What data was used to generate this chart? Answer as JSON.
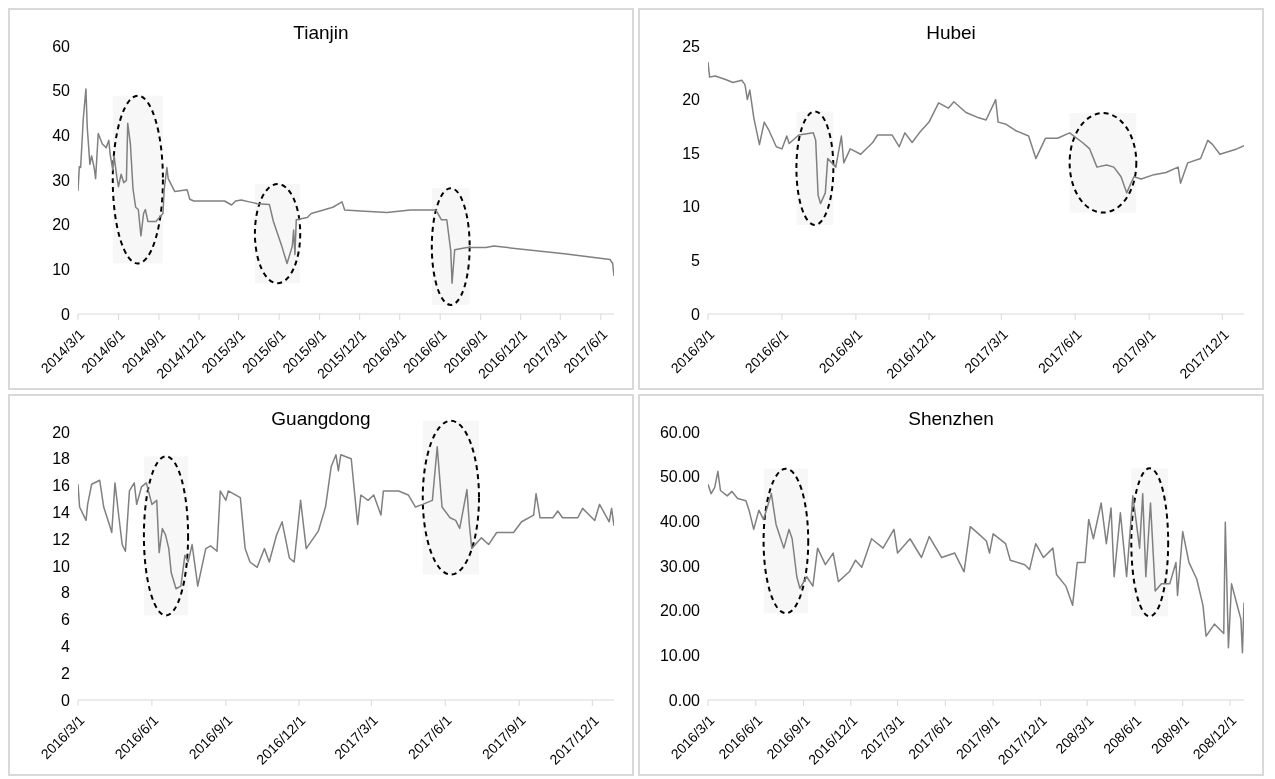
{
  "chart_data": [
    {
      "type": "line",
      "title": "Tianjin",
      "color": "#808080",
      "xlim": [
        "2014-03-01",
        "2017-07-01"
      ],
      "ylim": [
        0,
        60
      ],
      "yticks": [
        0,
        10,
        20,
        30,
        40,
        50,
        60
      ],
      "xticks": [
        {
          "value": "2014-03-01",
          "label": "2014/3/1"
        },
        {
          "value": "2014-06-01",
          "label": "2014/6/1"
        },
        {
          "value": "2014-09-01",
          "label": "2014/9/1"
        },
        {
          "value": "2014-12-01",
          "label": "2014/12/1"
        },
        {
          "value": "2015-03-01",
          "label": "2015/3/1"
        },
        {
          "value": "2015-06-01",
          "label": "2015/6/1"
        },
        {
          "value": "2015-09-01",
          "label": "2015/9/1"
        },
        {
          "value": "2015-12-01",
          "label": "2015/12/1"
        },
        {
          "value": "2016-03-01",
          "label": "2016/3/1"
        },
        {
          "value": "2016-06-01",
          "label": "2016/6/1"
        },
        {
          "value": "2016-09-01",
          "label": "2016/9/1"
        },
        {
          "value": "2016-12-01",
          "label": "2016/12/1"
        },
        {
          "value": "2017-03-01",
          "label": "2017/3/1"
        },
        {
          "value": "2017-06-01",
          "label": "2017/6/1"
        }
      ],
      "x": [
        "2014-03-01",
        "2014-03-04",
        "2014-03-07",
        "2014-03-13",
        "2014-03-19",
        "2014-03-22",
        "2014-03-28",
        "2014-04-01",
        "2014-04-07",
        "2014-04-10",
        "2014-04-16",
        "2014-04-25",
        "2014-05-04",
        "2014-05-10",
        "2014-05-13",
        "2014-05-19",
        "2014-05-22",
        "2014-05-28",
        "2014-06-01",
        "2014-06-07",
        "2014-06-13",
        "2014-06-19",
        "2014-06-22",
        "2014-06-28",
        "2014-07-04",
        "2014-07-10",
        "2014-07-16",
        "2014-07-22",
        "2014-07-28",
        "2014-08-01",
        "2014-08-07",
        "2014-08-25",
        "2014-09-10",
        "2014-09-13",
        "2014-09-19",
        "2014-09-22",
        "2014-10-07",
        "2014-11-04",
        "2014-11-10",
        "2014-11-19",
        "2015-01-28",
        "2015-02-13",
        "2015-02-22",
        "2015-03-07",
        "2015-03-25",
        "2015-04-13",
        "2015-05-10",
        "2015-05-19",
        "2015-06-07",
        "2015-06-19",
        "2015-07-01",
        "2015-07-04",
        "2015-07-07",
        "2015-07-10",
        "2015-08-04",
        "2015-08-13",
        "2015-09-10",
        "2015-10-01",
        "2015-10-22",
        "2015-10-28",
        "2015-12-13",
        "2016-02-01",
        "2016-03-25",
        "2016-05-22",
        "2016-06-04",
        "2016-06-16",
        "2016-06-25",
        "2016-06-28",
        "2016-07-04",
        "2016-08-01",
        "2016-09-13",
        "2016-10-01",
        "2017-03-10",
        "2017-06-22",
        "2017-06-28",
        "2017-07-01"
      ],
      "values": [
        27.6,
        33,
        32.8,
        43.7,
        50.4,
        41.8,
        33.5,
        35.4,
        32.6,
        30.3,
        40.4,
        38.1,
        37.2,
        38.9,
        35.8,
        32.2,
        35.4,
        30.8,
        28.5,
        31.3,
        29.4,
        29.9,
        42.7,
        38.1,
        28.0,
        23.9,
        23.4,
        17.5,
        22.5,
        23.4,
        20.7,
        20.7,
        22.5,
        28.0,
        32.8,
        30.3,
        27.4,
        27.8,
        25.7,
        25.3,
        25.3,
        24.4,
        25.3,
        25.5,
        25.1,
        24.7,
        24.5,
        20.7,
        15.2,
        11.3,
        15.2,
        18.8,
        13.3,
        21.1,
        21.6,
        22.5,
        23.3,
        23.9,
        25.1,
        23.3,
        23.0,
        22.7,
        23.3,
        23.3,
        21.1,
        21.1,
        14.2,
        6.9,
        14.4,
        14.9,
        14.9,
        15.2,
        13.5,
        12.2,
        11.3,
        8.5
      ],
      "bands": [
        {
          "axis": "x",
          "from": "2014-05-19",
          "to": "2014-09-10",
          "color": "#000000"
        },
        {
          "axis": "x",
          "from": "2015-04-07",
          "to": "2015-07-19",
          "color": "#000000"
        },
        {
          "axis": "x",
          "from": "2016-05-13",
          "to": "2016-08-07",
          "color": "#000000"
        }
      ]
    },
    {
      "type": "line",
      "title": "Hubei",
      "color": "#808080",
      "xlim": [
        "2016-03-01",
        "2017-12-28"
      ],
      "ylim": [
        0,
        25
      ],
      "yticks": [
        0,
        5,
        10,
        15,
        20,
        25
      ],
      "xticks": [
        {
          "value": "2016-03-01",
          "label": "2016/3/1"
        },
        {
          "value": "2016-06-01",
          "label": "2016/6/1"
        },
        {
          "value": "2016-09-01",
          "label": "2016/9/1"
        },
        {
          "value": "2016-12-01",
          "label": "2016/12/1"
        },
        {
          "value": "2017-03-01",
          "label": "2017/3/1"
        },
        {
          "value": "2017-06-01",
          "label": "2017/6/1"
        },
        {
          "value": "2017-09-01",
          "label": "2017/9/1"
        },
        {
          "value": "2017-12-01",
          "label": "2017/12/1"
        }
      ],
      "x": [
        "2016-03-01",
        "2016-03-03",
        "2016-03-10",
        "2016-03-22",
        "2016-04-01",
        "2016-04-12",
        "2016-04-16",
        "2016-04-19",
        "2016-04-22",
        "2016-04-27",
        "2016-05-04",
        "2016-05-10",
        "2016-05-16",
        "2016-05-25",
        "2016-06-01",
        "2016-06-07",
        "2016-06-10",
        "2016-06-22",
        "2016-07-10",
        "2016-07-13",
        "2016-07-16",
        "2016-07-19",
        "2016-07-25",
        "2016-07-28",
        "2016-08-07",
        "2016-08-14",
        "2016-08-17",
        "2016-08-25",
        "2016-09-07",
        "2016-09-22",
        "2016-09-28",
        "2016-10-16",
        "2016-10-25",
        "2016-11-01",
        "2016-11-10",
        "2016-11-19",
        "2016-12-01",
        "2016-12-13",
        "2016-12-25",
        "2017-01-01",
        "2017-01-16",
        "2017-02-01",
        "2017-02-10",
        "2017-02-22",
        "2017-02-25",
        "2017-03-07",
        "2017-03-19",
        "2017-04-04",
        "2017-04-13",
        "2017-04-25",
        "2017-05-10",
        "2017-05-25",
        "2017-06-10",
        "2017-06-19",
        "2017-06-28",
        "2017-07-10",
        "2017-07-19",
        "2017-07-28",
        "2017-08-04",
        "2017-08-13",
        "2017-08-22",
        "2017-09-07",
        "2017-09-22",
        "2017-10-07",
        "2017-10-10",
        "2017-10-19",
        "2017-11-04",
        "2017-11-13",
        "2017-11-19",
        "2017-11-28",
        "2017-12-19",
        "2017-12-28"
      ],
      "values": [
        23.5,
        22.1,
        22.2,
        21.9,
        21.6,
        21.8,
        21.4,
        20.0,
        20.9,
        18.3,
        15.8,
        17.9,
        17.1,
        15.6,
        15.4,
        16.6,
        15.9,
        16.7,
        16.9,
        16.2,
        11.1,
        10.3,
        11.3,
        14.5,
        13.7,
        16.6,
        14.1,
        15.4,
        14.9,
        16.0,
        16.7,
        16.7,
        15.6,
        16.9,
        16.0,
        16.9,
        17.9,
        19.7,
        19.2,
        19.8,
        18.8,
        18.3,
        18.1,
        20.0,
        17.9,
        17.7,
        17.1,
        16.6,
        14.5,
        16.4,
        16.4,
        16.9,
        16.0,
        15.4,
        13.7,
        13.9,
        13.7,
        12.8,
        11.3,
        12.8,
        12.6,
        13.0,
        13.2,
        13.7,
        12.2,
        14.1,
        14.5,
        16.2,
        15.8,
        14.9,
        15.4,
        15.7
      ],
      "bands": [
        {
          "axis": "x",
          "from": "2016-06-19",
          "to": "2016-08-04",
          "color": "#000000"
        },
        {
          "axis": "x",
          "from": "2017-05-25",
          "to": "2017-08-16",
          "color": "#000000"
        }
      ]
    },
    {
      "type": "line",
      "title": "Guangdong",
      "color": "#808080",
      "xlim": [
        "2016-03-01",
        "2017-12-28"
      ],
      "ylim": [
        0,
        20
      ],
      "yticks": [
        0,
        2,
        4,
        6,
        8,
        10,
        12,
        14,
        16,
        18,
        20
      ],
      "xticks": [
        {
          "value": "2016-03-01",
          "label": "2016/3/1"
        },
        {
          "value": "2016-06-01",
          "label": "2016/6/1"
        },
        {
          "value": "2016-09-01",
          "label": "2016/9/1"
        },
        {
          "value": "2016-12-01",
          "label": "2016/12/1"
        },
        {
          "value": "2017-03-01",
          "label": "2017/3/1"
        },
        {
          "value": "2017-06-01",
          "label": "2017/6/1"
        },
        {
          "value": "2017-09-01",
          "label": "2017/9/1"
        },
        {
          "value": "2017-12-01",
          "label": "2017/12/1"
        }
      ],
      "x": [
        "2016-03-01",
        "2016-03-03",
        "2016-03-11",
        "2016-03-13",
        "2016-03-18",
        "2016-03-28",
        "2016-04-02",
        "2016-04-09",
        "2016-04-12",
        "2016-04-16",
        "2016-04-21",
        "2016-04-25",
        "2016-04-29",
        "2016-05-04",
        "2016-05-10",
        "2016-05-13",
        "2016-05-19",
        "2016-05-25",
        "2016-06-01",
        "2016-06-07",
        "2016-06-10",
        "2016-06-14",
        "2016-06-18",
        "2016-06-22",
        "2016-06-25",
        "2016-07-01",
        "2016-07-07",
        "2016-07-12",
        "2016-07-16",
        "2016-07-21",
        "2016-07-28",
        "2016-08-07",
        "2016-08-13",
        "2016-08-21",
        "2016-08-25",
        "2016-09-01",
        "2016-09-04",
        "2016-09-19",
        "2016-09-25",
        "2016-10-01",
        "2016-10-10",
        "2016-10-19",
        "2016-10-25",
        "2016-11-03",
        "2016-11-10",
        "2016-11-19",
        "2016-11-25",
        "2016-12-03",
        "2016-12-10",
        "2016-12-25",
        "2017-01-03",
        "2017-01-10",
        "2017-01-16",
        "2017-01-19",
        "2017-01-22",
        "2017-02-04",
        "2017-02-12",
        "2017-02-16",
        "2017-02-25",
        "2017-03-04",
        "2017-03-13",
        "2017-03-16",
        "2017-04-04",
        "2017-04-16",
        "2017-04-25",
        "2017-05-04",
        "2017-05-16",
        "2017-05-22",
        "2017-05-28",
        "2017-06-07",
        "2017-06-14",
        "2017-06-19",
        "2017-06-28",
        "2017-07-01",
        "2017-07-04",
        "2017-07-16",
        "2017-07-25",
        "2017-08-04",
        "2017-08-25",
        "2017-09-04",
        "2017-09-19",
        "2017-09-22",
        "2017-09-27",
        "2017-10-13",
        "2017-10-19",
        "2017-10-25",
        "2017-11-13",
        "2017-11-19",
        "2017-12-04",
        "2017-12-10",
        "2017-12-22",
        "2017-12-25",
        "2017-12-28"
      ],
      "values": [
        16.1,
        14.4,
        13.4,
        14.6,
        16.1,
        16.4,
        14.4,
        13.1,
        12.5,
        16.2,
        13.6,
        11.6,
        11.1,
        15.6,
        16.2,
        14.6,
        15.9,
        16.2,
        14.6,
        14.9,
        11.0,
        12.8,
        12.3,
        11.3,
        9.5,
        8.3,
        8.5,
        10.8,
        10.3,
        11.6,
        8.5,
        11.3,
        11.5,
        11.1,
        15.6,
        14.9,
        15.6,
        15.1,
        11.3,
        10.3,
        9.9,
        11.3,
        10.3,
        12.3,
        13.3,
        10.6,
        10.3,
        14.9,
        11.3,
        12.6,
        14.4,
        17.4,
        18.3,
        17.1,
        18.3,
        18.0,
        13.1,
        15.3,
        14.9,
        15.3,
        13.8,
        15.6,
        15.6,
        15.3,
        14.4,
        14.6,
        14.9,
        18.9,
        14.4,
        13.6,
        13.4,
        12.8,
        15.7,
        13.1,
        11.3,
        12.1,
        11.6,
        12.5,
        12.5,
        13.3,
        13.8,
        15.4,
        13.6,
        13.6,
        14.1,
        13.6,
        13.6,
        14.3,
        13.4,
        14.6,
        13.3,
        14.3,
        13.0
      ],
      "bands": [
        {
          "axis": "x",
          "from": "2016-05-22",
          "to": "2016-07-16",
          "color": "#000000"
        },
        {
          "axis": "x",
          "from": "2017-05-04",
          "to": "2017-07-13",
          "color": "#000000"
        }
      ]
    },
    {
      "type": "line",
      "title": "Shenzhen",
      "color": "#808080",
      "xlim": [
        "2016-03-01",
        "2018-12-28"
      ],
      "ylim": [
        0,
        60
      ],
      "yticks": [
        {
          "value": 0,
          "label": "0.00"
        },
        {
          "value": 10,
          "label": "10.00"
        },
        {
          "value": 20,
          "label": "20.00"
        },
        {
          "value": 30,
          "label": "30.00"
        },
        {
          "value": 40,
          "label": "40.00"
        },
        {
          "value": 50,
          "label": "50.00"
        },
        {
          "value": 60,
          "label": "60.00"
        }
      ],
      "xticks": [
        {
          "value": "2016-03-01",
          "label": "2016/3/1"
        },
        {
          "value": "2016-06-01",
          "label": "2016/6/1"
        },
        {
          "value": "2016-09-01",
          "label": "2016/9/1"
        },
        {
          "value": "2016-12-01",
          "label": "2016/12/1"
        },
        {
          "value": "2017-03-01",
          "label": "2017/3/1"
        },
        {
          "value": "2017-06-01",
          "label": "2017/6/1"
        },
        {
          "value": "2017-09-01",
          "label": "2017/9/1"
        },
        {
          "value": "2017-12-01",
          "label": "2017/12/1"
        },
        {
          "value": "2018-03-01",
          "label": "208/3/1"
        },
        {
          "value": "2018-06-01",
          "label": "208/6/1"
        },
        {
          "value": "2018-09-01",
          "label": "208/9/1"
        },
        {
          "value": "2018-12-01",
          "label": "208/12/1"
        }
      ],
      "x": [
        "2016-03-01",
        "2016-03-07",
        "2016-03-14",
        "2016-03-20",
        "2016-03-25",
        "2016-04-07",
        "2016-04-16",
        "2016-04-27",
        "2016-05-13",
        "2016-05-19",
        "2016-05-28",
        "2016-06-07",
        "2016-06-16",
        "2016-07-01",
        "2016-07-10",
        "2016-07-19",
        "2016-07-25",
        "2016-08-04",
        "2016-08-10",
        "2016-08-19",
        "2016-08-25",
        "2016-09-07",
        "2016-09-19",
        "2016-09-28",
        "2016-10-13",
        "2016-10-28",
        "2016-11-07",
        "2016-11-28",
        "2016-12-10",
        "2016-12-22",
        "2017-01-10",
        "2017-02-01",
        "2017-02-22",
        "2017-03-01",
        "2017-03-25",
        "2017-04-16",
        "2017-05-01",
        "2017-05-25",
        "2017-06-19",
        "2017-07-07",
        "2017-07-19",
        "2017-08-04",
        "2017-08-19",
        "2017-08-25",
        "2017-09-01",
        "2017-09-25",
        "2017-10-04",
        "2017-11-01",
        "2017-11-10",
        "2017-11-22",
        "2017-12-07",
        "2017-12-25",
        "2018-01-01",
        "2018-01-19",
        "2018-02-01",
        "2018-02-10",
        "2018-02-25",
        "2018-03-04",
        "2018-03-13",
        "2018-03-28",
        "2018-04-07",
        "2018-04-16",
        "2018-04-22",
        "2018-05-04",
        "2018-05-16",
        "2018-05-28",
        "2018-06-10",
        "2018-06-16",
        "2018-06-22",
        "2018-07-01",
        "2018-07-10",
        "2018-07-22",
        "2018-08-07",
        "2018-08-19",
        "2018-08-22",
        "2018-09-01",
        "2018-09-13",
        "2018-09-28",
        "2018-10-10",
        "2018-10-16",
        "2018-11-01",
        "2018-11-19",
        "2018-11-22",
        "2018-11-28",
        "2018-12-04",
        "2018-12-16",
        "2018-12-22",
        "2018-12-25",
        "2018-12-28"
      ],
      "values": [
        48.3,
        46.2,
        47.6,
        51.2,
        46.9,
        45.7,
        46.7,
        45.1,
        44.6,
        42.5,
        38.2,
        42.5,
        40.4,
        46.2,
        39.3,
        36.1,
        34.0,
        38.2,
        36.1,
        27.6,
        25.0,
        27.6,
        25.5,
        34.0,
        30.3,
        32.9,
        26.5,
        28.7,
        31.3,
        29.7,
        36.1,
        34.0,
        38.2,
        32.9,
        36.1,
        31.9,
        36.6,
        31.9,
        32.9,
        28.7,
        38.8,
        37.2,
        35.6,
        32.9,
        37.2,
        35.0,
        31.3,
        30.3,
        29.2,
        35.0,
        31.9,
        34.0,
        28.1,
        25.5,
        21.2,
        30.8,
        30.8,
        40.4,
        36.1,
        44.1,
        35.0,
        43.0,
        27.6,
        41.9,
        27.6,
        45.7,
        34.0,
        46.2,
        27.6,
        44.1,
        24.4,
        26.0,
        26.0,
        30.8,
        23.4,
        37.7,
        30.8,
        27.1,
        21.2,
        14.3,
        17.0,
        14.9,
        39.8,
        11.7,
        26.0,
        20.7,
        18.1,
        10.6,
        21.8
      ],
      "bands": [
        {
          "axis": "x",
          "from": "2016-06-16",
          "to": "2016-09-10",
          "color": "#000000"
        },
        {
          "axis": "x",
          "from": "2018-05-25",
          "to": "2018-08-04",
          "color": "#000000"
        }
      ]
    }
  ]
}
